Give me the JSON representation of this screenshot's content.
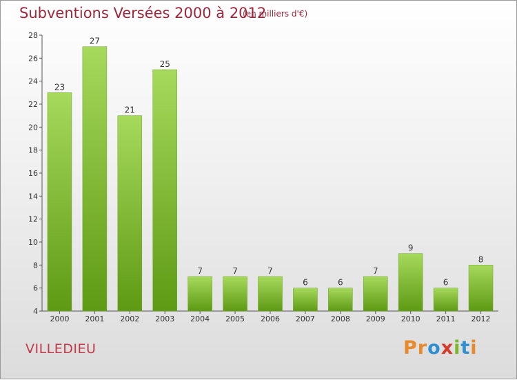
{
  "title": "Subventions Versées 2000 à 2012",
  "subtitle": "(en milliers d'€)",
  "commune": "VILLEDIEU",
  "brand": {
    "letters": [
      "P",
      "r",
      "o",
      "x",
      "i",
      "t",
      "i"
    ],
    "colors": [
      "#e8892b",
      "#e8892b",
      "#2f8fd0",
      "#d63a2a",
      "#7ab62a",
      "#2f8fd0",
      "#e8892b"
    ]
  },
  "chart_data": {
    "type": "bar",
    "categories": [
      "2000",
      "2001",
      "2002",
      "2003",
      "2004",
      "2005",
      "2006",
      "2007",
      "2008",
      "2009",
      "2010",
      "2011",
      "2012"
    ],
    "values": [
      23,
      27,
      21,
      25,
      7,
      7,
      7,
      6,
      6,
      7,
      9,
      6,
      8
    ],
    "ylim": [
      4,
      28
    ],
    "yticks": [
      4,
      6,
      8,
      10,
      12,
      14,
      16,
      18,
      20,
      22,
      24,
      26,
      28
    ],
    "bar_color": "#7ab62a",
    "grid": false,
    "xlabel": "",
    "ylabel": ""
  }
}
